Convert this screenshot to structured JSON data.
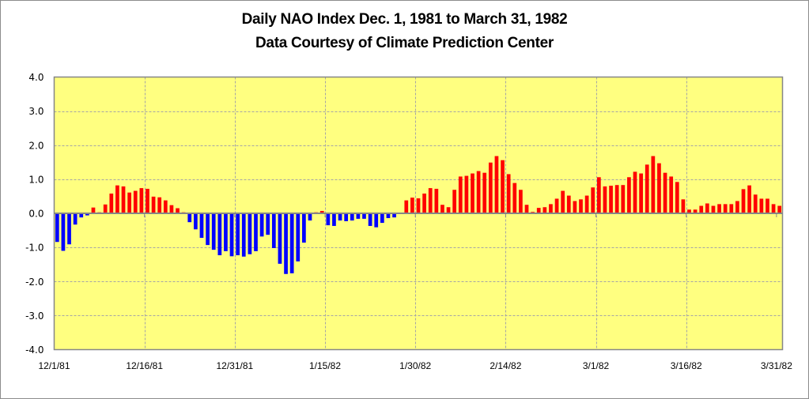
{
  "chart_data": {
    "type": "bar",
    "title": "Daily NAO Index Dec. 1, 1981 to March 31, 1982",
    "subtitle": "Data Courtesy of Climate Prediction Center",
    "xlabel": "",
    "ylabel": "",
    "ylim": [
      -4.0,
      4.0
    ],
    "yticks": [
      "4.0",
      "3.0",
      "2.0",
      "1.0",
      "0.0",
      "-1.0",
      "-2.0",
      "-3.0",
      "-4.0"
    ],
    "ytick_values": [
      4,
      3,
      2,
      1,
      0,
      -1,
      -2,
      -3,
      -4
    ],
    "xtick_labels": [
      "12/1/81",
      "12/16/81",
      "12/31/81",
      "1/15/82",
      "1/30/82",
      "2/14/82",
      "3/1/82",
      "3/16/82",
      "3/31/82"
    ],
    "xtick_day_index": [
      0,
      15,
      30,
      45,
      60,
      75,
      90,
      105,
      120
    ],
    "grid": true,
    "legend": "none",
    "colors": {
      "positive": "#FF0000",
      "negative": "#0000FF",
      "plot_background": "#FFFF80",
      "gridline": "#A6A6A6",
      "axis": "#868686"
    },
    "start_date": "12/1/81",
    "end_date": "3/31/82",
    "values": [
      -0.84,
      -1.1,
      -0.91,
      -0.33,
      -0.12,
      -0.06,
      0.17,
      0.03,
      0.26,
      0.58,
      0.82,
      0.79,
      0.61,
      0.66,
      0.74,
      0.72,
      0.49,
      0.47,
      0.38,
      0.24,
      0.15,
      0.03,
      -0.26,
      -0.47,
      -0.72,
      -0.93,
      -1.07,
      -1.23,
      -1.11,
      -1.26,
      -1.23,
      -1.27,
      -1.2,
      -1.11,
      -0.68,
      -0.63,
      -1.02,
      -1.48,
      -1.78,
      -1.76,
      -1.41,
      -0.86,
      -0.21,
      0.03,
      0.07,
      -0.35,
      -0.37,
      -0.21,
      -0.23,
      -0.21,
      -0.16,
      -0.16,
      -0.37,
      -0.41,
      -0.28,
      -0.14,
      -0.12,
      0.02,
      0.38,
      0.46,
      0.44,
      0.58,
      0.74,
      0.72,
      0.25,
      0.18,
      0.69,
      1.08,
      1.1,
      1.17,
      1.24,
      1.19,
      1.49,
      1.68,
      1.56,
      1.15,
      0.89,
      0.69,
      0.25,
      0.04,
      0.16,
      0.18,
      0.27,
      0.43,
      0.66,
      0.52,
      0.36,
      0.41,
      0.52,
      0.76,
      1.06,
      0.79,
      0.81,
      0.83,
      0.83,
      1.06,
      1.22,
      1.17,
      1.43,
      1.68,
      1.47,
      1.19,
      1.08,
      0.92,
      0.41,
      0.11,
      0.11,
      0.22,
      0.29,
      0.22,
      0.27,
      0.27,
      0.27,
      0.36,
      0.71,
      0.82,
      0.55,
      0.43,
      0.43,
      0.27,
      0.22
    ]
  }
}
